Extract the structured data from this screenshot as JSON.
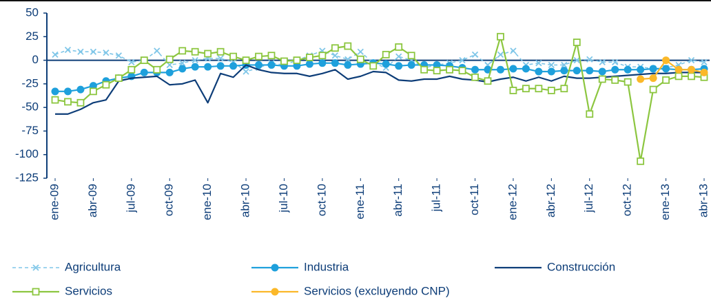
{
  "chart_data": {
    "type": "line",
    "categories": [
      "ene-09",
      null,
      null,
      "abr-09",
      null,
      null,
      "jul-09",
      null,
      null,
      "oct-09",
      null,
      null,
      "ene-10",
      null,
      null,
      "abr-10",
      null,
      null,
      "jul-10",
      null,
      null,
      "oct-10",
      null,
      null,
      "ene-11",
      null,
      null,
      "abr-11",
      null,
      null,
      "jul-11",
      null,
      null,
      "oct-11",
      null,
      null,
      "ene-12",
      null,
      null,
      "abr-12",
      null,
      null,
      "jul-12",
      null,
      null,
      "oct-12",
      null,
      null,
      "ene-13",
      null,
      null,
      "abr-13"
    ],
    "ylim": [
      -125,
      50
    ],
    "yticks": [
      -125,
      -100,
      -75,
      -50,
      -25,
      0,
      25,
      50
    ],
    "legend": "bottom",
    "series": [
      {
        "name": "Agricultura",
        "color": "#7fc6e8",
        "dash": "dashed",
        "marker": "x",
        "values": [
          6,
          11,
          9,
          9,
          8,
          5,
          -2,
          0,
          10,
          -5,
          -3,
          0,
          2,
          2,
          -2,
          -12,
          -8,
          -3,
          -5,
          0,
          5,
          10,
          5,
          1,
          9,
          -3,
          -8,
          4,
          0,
          -8,
          -5,
          -3,
          0,
          6,
          -5,
          6,
          10,
          -5,
          -3,
          -5,
          -5,
          0,
          1,
          -2,
          -2,
          -7,
          -7,
          -9,
          -8,
          -5,
          0,
          -2
        ]
      },
      {
        "name": "Industria",
        "color": "#1ea0dc",
        "dash": "solid",
        "marker": "circle",
        "values": [
          -33,
          -33,
          -31,
          -27,
          -22,
          -19,
          -17,
          -13,
          -13,
          -13,
          -9,
          -7,
          -7,
          -6,
          -6,
          -5,
          -5,
          -5,
          -6,
          -6,
          -4,
          -3,
          -3,
          -5,
          -4,
          -3,
          -4,
          -6,
          -5,
          -5,
          -5,
          -6,
          -8,
          -10,
          -10,
          -10,
          -9,
          -9,
          -12,
          -12,
          -11,
          -11,
          -11,
          -12,
          -10,
          -10,
          -10,
          -9,
          -9,
          -10,
          -10,
          -9
        ]
      },
      {
        "name": "Construcción",
        "color": "#0d3d78",
        "dash": "solid",
        "marker": "none",
        "values": [
          -57,
          -57,
          -52,
          -45,
          -42,
          -22,
          -19,
          -18,
          -17,
          -26,
          -25,
          -21,
          -45,
          -14,
          -18,
          -5,
          -10,
          -13,
          -14,
          -14,
          -17,
          -14,
          -10,
          -20,
          -17,
          -12,
          -13,
          -21,
          -22,
          -20,
          -20,
          -17,
          -20,
          -21,
          -23,
          -20,
          -18,
          -22,
          -18,
          -22,
          -17,
          -19,
          -19,
          -18,
          -17,
          -16,
          -15,
          -14,
          -14,
          -13,
          -13,
          -13
        ]
      },
      {
        "name": "Servicios",
        "color": "#8cc63f",
        "dash": "solid",
        "marker": "square",
        "values": [
          -42,
          -44,
          -45,
          -33,
          -26,
          -19,
          -10,
          0,
          -10,
          1,
          10,
          9,
          7,
          9,
          4,
          0,
          4,
          5,
          -1,
          0,
          3,
          5,
          13,
          15,
          1,
          -6,
          6,
          14,
          5,
          -10,
          -11,
          -10,
          -11,
          -18,
          -22,
          25,
          -32,
          -30,
          -30,
          -32,
          -30,
          19,
          -57,
          -20,
          -21,
          -23,
          -107,
          -31,
          -21,
          -17,
          -17,
          -18
        ]
      },
      {
        "name": "Servicios (excluyendo CNP)",
        "color": "#fbb829",
        "dash": "solid",
        "marker": "circle",
        "values": [
          null,
          null,
          null,
          null,
          null,
          null,
          null,
          null,
          null,
          null,
          null,
          null,
          null,
          null,
          null,
          null,
          null,
          null,
          null,
          null,
          null,
          null,
          null,
          null,
          null,
          null,
          null,
          null,
          null,
          null,
          null,
          null,
          null,
          null,
          null,
          null,
          null,
          null,
          null,
          null,
          null,
          null,
          null,
          null,
          null,
          null,
          -20,
          -19,
          0,
          -10,
          -10,
          -13
        ]
      }
    ]
  }
}
